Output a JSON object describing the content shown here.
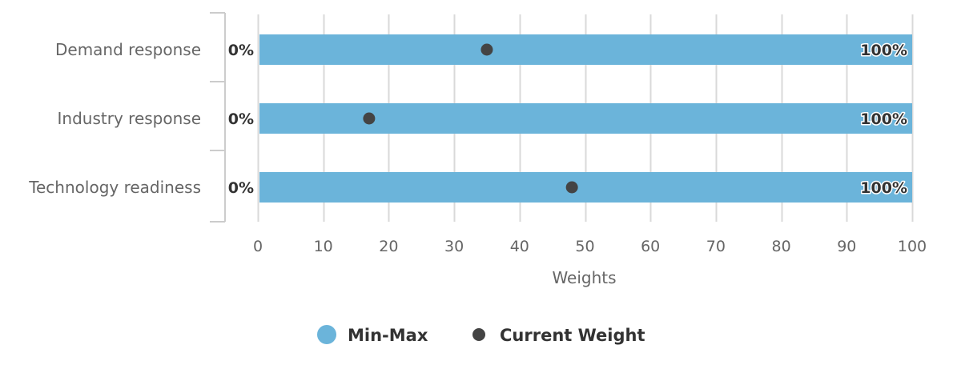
{
  "chart_data": {
    "type": "bar",
    "categories": [
      "Demand response",
      "Industry response",
      "Technology readiness"
    ],
    "series": [
      {
        "name": "Min-Max",
        "kind": "range",
        "low": [
          0,
          0,
          0
        ],
        "high": [
          100,
          100,
          100
        ],
        "low_labels": [
          "0%",
          "0%",
          "0%"
        ],
        "high_labels": [
          "100%",
          "100%",
          "100%"
        ],
        "color": "#6bb4da"
      },
      {
        "name": "Current Weight",
        "kind": "point",
        "values": [
          35,
          17,
          48
        ],
        "color": "#444444"
      }
    ],
    "orientation": "horizontal",
    "xlabel": "Weights",
    "xlim": [
      0,
      100
    ],
    "ticks": [
      0,
      10,
      20,
      30,
      40,
      50,
      60,
      70,
      80,
      90,
      100
    ],
    "grid": true,
    "legend": "bottom-center"
  }
}
